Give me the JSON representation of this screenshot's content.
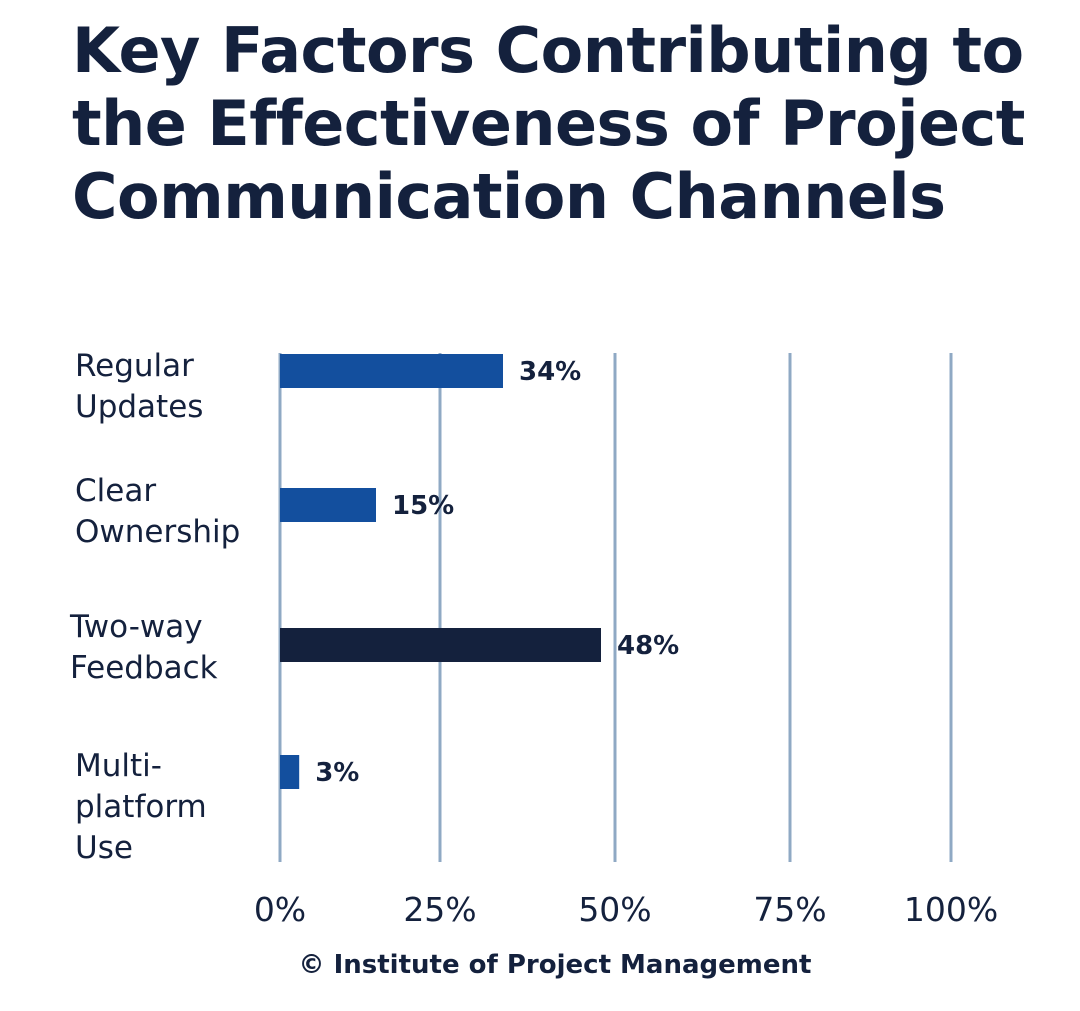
{
  "chart_data": {
    "type": "bar",
    "orientation": "horizontal",
    "title": "Key Factors Contributing to the Effectiveness of Project Communication Channels",
    "categories": [
      [
        "Regular",
        "Updates"
      ],
      [
        "Clear",
        "Ownership"
      ],
      [
        "Two-way",
        "Feedback"
      ],
      [
        "Multi-",
        "platform",
        "Use"
      ]
    ],
    "values": [
      34,
      15,
      48,
      3
    ],
    "value_labels": [
      "34%",
      "15%",
      "48%",
      "3%"
    ],
    "highlighted_index": 2,
    "xlim": [
      0,
      100
    ],
    "xticks": [
      0,
      25,
      50,
      75,
      100
    ],
    "xtick_labels": [
      "0%",
      "25%",
      "50%",
      "75%",
      "100%"
    ],
    "grid": "vertical",
    "colors": {
      "bar": "#134f9e",
      "highlight": "#14213d",
      "grid": "#8fa9c4",
      "text": "#14213d"
    }
  },
  "source": "© Institute of Project Management"
}
